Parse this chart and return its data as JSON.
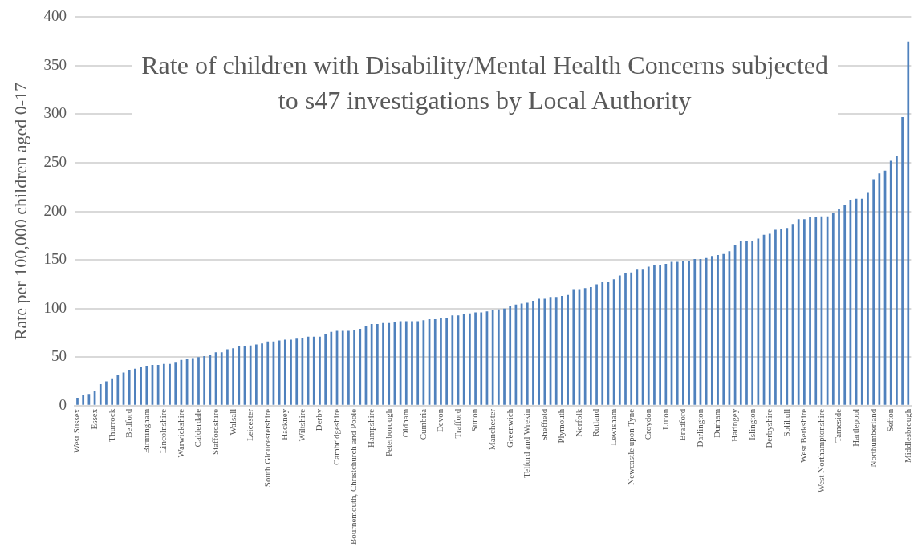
{
  "chart_data": {
    "type": "bar",
    "title": "Rate of children with Disability/Mental Health Concerns subjected to s47 investigations by Local Authority",
    "ylabel": "Rate per 100,000 children aged 0-17",
    "categories": [
      "West Sussex",
      null,
      null,
      "Essex",
      null,
      null,
      "Thurrock",
      null,
      null,
      "Bedford",
      null,
      null,
      "Birmingham",
      null,
      null,
      "Lincolnshire",
      null,
      null,
      "Warwickshire",
      null,
      null,
      "Calderdale",
      null,
      null,
      "Staffordshire",
      null,
      null,
      "Walsall",
      null,
      null,
      "Leicester",
      null,
      null,
      "South Gloucestershire",
      null,
      null,
      "Hackney",
      null,
      null,
      "Wiltshire",
      null,
      null,
      "Derby",
      null,
      null,
      "Cambridgeshire",
      null,
      null,
      "Bournemouth, Christchurch and Poole",
      null,
      null,
      "Hampshire",
      null,
      null,
      "Peterborough",
      null,
      null,
      "Oldham",
      null,
      null,
      "Cumbria",
      null,
      null,
      "Devon",
      null,
      null,
      "Trafford",
      null,
      null,
      "Sutton",
      null,
      null,
      "Manchester",
      null,
      null,
      "Greenwich",
      null,
      null,
      "Telford and Wrekin",
      null,
      null,
      "Sheffield",
      null,
      null,
      "Plymouth",
      null,
      null,
      "Norfolk",
      null,
      null,
      "Rutland",
      null,
      null,
      "Lewisham",
      null,
      null,
      "Newcastle upon Tyne",
      null,
      null,
      "Croydon",
      null,
      null,
      "Luton",
      null,
      null,
      "Bradford",
      null,
      null,
      "Darlington",
      null,
      null,
      "Durham",
      null,
      null,
      "Haringey",
      null,
      null,
      "Islington",
      null,
      null,
      "Derbyshire",
      null,
      null,
      "Solihull",
      null,
      null,
      "West Berkshire",
      null,
      null,
      "West Northamptonshire",
      null,
      null,
      "Tameside",
      null,
      null,
      "Hartlepool",
      null,
      null,
      "Northumberland",
      null,
      null,
      "Sefton",
      null,
      null,
      "Middlesbrough"
    ],
    "values": [
      8,
      11,
      12,
      15,
      22,
      25,
      28,
      32,
      34,
      37,
      38,
      40,
      41,
      42,
      42,
      43,
      43,
      45,
      47,
      48,
      49,
      50,
      51,
      52,
      55,
      55,
      58,
      59,
      61,
      61,
      62,
      63,
      64,
      66,
      66,
      67,
      68,
      68,
      69,
      70,
      71,
      71,
      71,
      74,
      76,
      77,
      77,
      77,
      78,
      79,
      82,
      84,
      84,
      85,
      85,
      86,
      87,
      87,
      87,
      87,
      88,
      89,
      89,
      90,
      90,
      93,
      93,
      94,
      95,
      96,
      96,
      97,
      98,
      99,
      100,
      103,
      104,
      105,
      106,
      108,
      110,
      110,
      112,
      112,
      113,
      114,
      120,
      120,
      121,
      122,
      125,
      127,
      127,
      130,
      134,
      136,
      137,
      140,
      140,
      143,
      145,
      145,
      146,
      148,
      148,
      149,
      149,
      151,
      151,
      152,
      154,
      155,
      156,
      159,
      165,
      169,
      169,
      170,
      172,
      176,
      177,
      181,
      182,
      183,
      187,
      192,
      192,
      194,
      194,
      195,
      195,
      198,
      203,
      207,
      212,
      213,
      213,
      219,
      233,
      239,
      242,
      252,
      257,
      297,
      375
    ],
    "color": "#4f81bd",
    "ylim": [
      0,
      400
    ],
    "yticks": [
      0,
      50,
      100,
      150,
      200,
      250,
      300,
      350,
      400
    ],
    "grid": "y"
  }
}
